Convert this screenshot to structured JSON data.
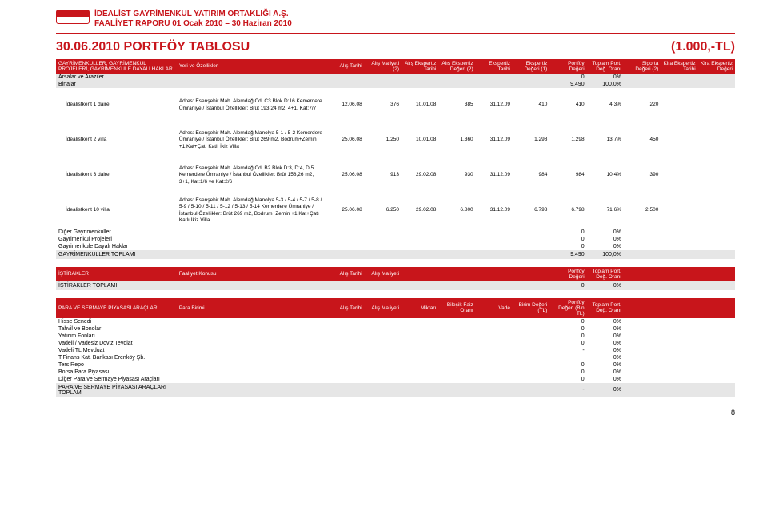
{
  "header": {
    "company": "İDEALİST GAYRİMENKUL YATIRIM ORTAKLIĞI A.Ş.",
    "report": "FAALİYET RAPORU 01 Ocak 2010 – 30 Haziran 2010"
  },
  "title": {
    "left": "30.06.2010 PORTFÖY TABLOSU",
    "right": "(1.000,-TL)"
  },
  "t1": {
    "headers": [
      "GAYRİMENKULLER, GAYRİMENKUL PROJELERİ, GAYRİMENKULE DAYALI HAKLAR",
      "Yeri ve Özellikleri",
      "Alış Tarihi",
      "Alış Maliyeti (2)",
      "Alış Ekspertiz Tarihi",
      "Alış Ekspertiz Değeri (2)",
      "Ekspertiz Tarihi",
      "Ekspertiz Değeri (1)",
      "Portföy Değeri",
      "Toplam Port. Değ. Oranı",
      "Sigorta Değeri (2)",
      "Kira Ekspertiz Tarihi",
      "Kira Ekspertiz Değeri"
    ],
    "rows_top": [
      {
        "label": "Arsalar ve Araziler",
        "pv": "0",
        "rate": "0%"
      },
      {
        "label": "Binalar",
        "pv": "9.490",
        "rate": "100,0%"
      }
    ],
    "assets": [
      {
        "name": "İdealistkent 1 daire",
        "desc": "Adres: Esenşehir Mah. Alemdağ Cd. C3 Blok D:16 Kemerdere Ümraniye / İstanbul Özellikler: Brüt 193,24 m2, 4+1, Kat:7/7",
        "v": [
          "12.06.08",
          "376",
          "10.01.08",
          "385",
          "31.12.09",
          "410",
          "410",
          "4,3%",
          "220",
          "",
          ""
        ]
      },
      {
        "name": "İdealistkent 2 villa",
        "desc": "Adres: Esenşehir Mah. Alemdağ Manolya 5-1 / 5-2 Kemerdere Ümraniye / İstanbul Özellikler: Brüt 269 m2, Bodrum+Zemin +1.Kat+Çatı Katlı İkiz Villa",
        "v": [
          "25.06.08",
          "1.250",
          "10.01.08",
          "1.360",
          "31.12.09",
          "1.298",
          "1.298",
          "13,7%",
          "450",
          "",
          ""
        ]
      },
      {
        "name": "İdealistkent 3 daire",
        "desc": "Adres: Esenşehir Mah. Alemdağ Cd. B2 Blok D:3, D:4, D:5 Kemerdere Ümraniye / İstanbul Özellikler: Brüt 158,26 m2, 3+1, Kat:1/6 ve Kat:2/6",
        "v": [
          "25.06.08",
          "913",
          "29.02.08",
          "930",
          "31.12.09",
          "984",
          "984",
          "10,4%",
          "390",
          "",
          ""
        ]
      },
      {
        "name": "İdealistkent 10 villa",
        "desc": "Adres: Esenşehir Mah. Alemdağ Manolya 5-3 / 5-4 / 5-7 / 5-8 / 5-9 / 5-10 / 5-11 / 5-12 / 5-13 / 5-14 Kemerdere Ümraniye / İstanbul Özellikler: Brüt 269 m2, Bodrum+Zemin +1.Kat+Çatı Katlı İkiz Villa",
        "v": [
          "25.06.08",
          "6.250",
          "29.02.08",
          "6.800",
          "31.12.09",
          "6.798",
          "6.798",
          "71,6%",
          "2.500",
          "",
          ""
        ]
      }
    ],
    "others": [
      {
        "label": "Diğer Gayrimenkuller",
        "pv": "0",
        "rate": "0%"
      },
      {
        "label": "Gayrimenkul Projeleri",
        "pv": "0",
        "rate": "0%"
      },
      {
        "label": "Gayrimenkule Dayalı Haklar",
        "pv": "0",
        "rate": "0%"
      }
    ],
    "total": {
      "label": "GAYRİMENKULLER TOPLAMI",
      "pv": "9.490",
      "rate": "100,0%"
    }
  },
  "t2": {
    "headers": [
      "İŞTİRAKLER",
      "Faaliyet Konusu",
      "Alış Tarihi",
      "Alış Maliyeti",
      "",
      "",
      "",
      "",
      "Portföy Değeri",
      "Toplam Port. Değ. Oranı",
      "",
      "",
      ""
    ],
    "total": {
      "label": "İŞTİRAKLER TOPLAMI",
      "pv": "0",
      "rate": "0%"
    }
  },
  "t3": {
    "headers": [
      "PARA VE SERMAYE PİYASASI ARAÇLARI",
      "Para Birimi",
      "Alış Tarihi",
      "Alış Maliyeti",
      "Miktarı",
      "Bileşik Faiz Oranı",
      "Vade",
      "Birim Değeri (TL)",
      "Portföy Değeri (Bin TL)",
      "Toplam Port. Değ. Oranı",
      "",
      "",
      ""
    ],
    "rows": [
      {
        "label": "Hisse Senedi",
        "pv": "0",
        "rate": "0%"
      },
      {
        "label": "Tahvil ve Bonolar",
        "pv": "0",
        "rate": "0%"
      },
      {
        "label": "Yatırım Fonları",
        "pv": "0",
        "rate": "0%"
      },
      {
        "label": "Vadeli / Vadesiz Döviz Tevdiat",
        "pv": "0",
        "rate": "0%"
      },
      {
        "label": "Vadeli TL Mevduat",
        "pv": "-",
        "rate": "0%"
      },
      {
        "label": "   T.Finans Kat. Bankası Erenköy Şb.",
        "pv": "",
        "rate": "0%"
      },
      {
        "label": "Ters Repo",
        "pv": "0",
        "rate": "0%"
      },
      {
        "label": "Borsa Para Piyasası",
        "pv": "0",
        "rate": "0%"
      },
      {
        "label": "Diğer Para ve Sermaye Piyasası Araçları",
        "pv": "0",
        "rate": "0%"
      }
    ],
    "total": {
      "label": "PARA VE SERMAYE PİYASASI ARAÇLARI TOPLAMI",
      "pv": "-",
      "rate": "0%"
    }
  },
  "page_number": "8"
}
